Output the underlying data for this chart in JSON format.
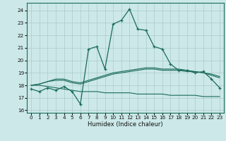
{
  "xlabel": "Humidex (Indice chaleur)",
  "bg_color": "#cce8e8",
  "grid_color": "#aacccc",
  "line_color": "#1a6b5a",
  "xlim": [
    -0.5,
    23.5
  ],
  "ylim": [
    15.8,
    24.6
  ],
  "xticks": [
    0,
    1,
    2,
    3,
    4,
    5,
    6,
    7,
    8,
    9,
    10,
    11,
    12,
    13,
    14,
    15,
    16,
    17,
    18,
    19,
    20,
    21,
    22,
    23
  ],
  "yticks": [
    16,
    17,
    18,
    19,
    20,
    21,
    22,
    23,
    24
  ],
  "main_x": [
    0,
    1,
    2,
    3,
    4,
    5,
    6,
    7,
    8,
    9,
    10,
    11,
    12,
    13,
    14,
    15,
    16,
    17,
    18,
    19,
    20,
    21,
    22,
    23
  ],
  "main_y": [
    17.7,
    17.5,
    17.8,
    17.6,
    17.9,
    17.5,
    16.5,
    20.9,
    21.1,
    19.3,
    22.9,
    23.2,
    24.1,
    22.5,
    22.4,
    21.1,
    20.9,
    19.7,
    19.2,
    19.2,
    19.0,
    19.1,
    18.5,
    17.8
  ],
  "line2_x": [
    0,
    1,
    2,
    3,
    4,
    5,
    6,
    7,
    8,
    9,
    10,
    11,
    12,
    13,
    14,
    15,
    16,
    17,
    18,
    19,
    20,
    21,
    22,
    23
  ],
  "line2_y": [
    18.0,
    18.1,
    18.3,
    18.4,
    18.4,
    18.2,
    18.1,
    18.3,
    18.5,
    18.7,
    18.9,
    19.0,
    19.1,
    19.2,
    19.3,
    19.3,
    19.2,
    19.2,
    19.2,
    19.1,
    19.1,
    19.0,
    18.9,
    18.7
  ],
  "line3_x": [
    0,
    1,
    2,
    3,
    4,
    5,
    6,
    7,
    8,
    9,
    10,
    11,
    12,
    13,
    14,
    15,
    16,
    17,
    18,
    19,
    20,
    21,
    22,
    23
  ],
  "line3_y": [
    18.0,
    18.0,
    17.9,
    17.8,
    17.7,
    17.6,
    17.5,
    17.5,
    17.5,
    17.4,
    17.4,
    17.4,
    17.4,
    17.3,
    17.3,
    17.3,
    17.3,
    17.2,
    17.2,
    17.2,
    17.2,
    17.1,
    17.1,
    17.1
  ],
  "line4_x": [
    0,
    1,
    2,
    3,
    4,
    5,
    6,
    7,
    8,
    9,
    10,
    11,
    12,
    13,
    14,
    15,
    16,
    17,
    18,
    19,
    20,
    21,
    22,
    23
  ],
  "line4_y": [
    18.0,
    18.1,
    18.3,
    18.5,
    18.5,
    18.3,
    18.2,
    18.4,
    18.6,
    18.8,
    19.0,
    19.1,
    19.2,
    19.3,
    19.4,
    19.4,
    19.3,
    19.3,
    19.3,
    19.2,
    19.1,
    19.0,
    18.8,
    18.6
  ],
  "xlabel_fontsize": 6.0,
  "tick_fontsize": 5.2
}
